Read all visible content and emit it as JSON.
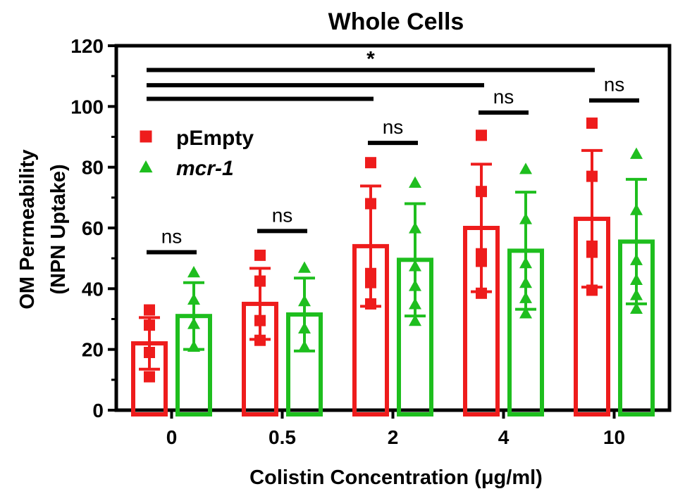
{
  "chart_data": {
    "type": "bar",
    "title": "Whole Cells",
    "xlabel": "Colistin Concentration (μg/ml)",
    "ylabel_line1": "OM Permeability",
    "ylabel_line2": "(NPN Uptake)",
    "categories": [
      "0",
      "0.5",
      "2",
      "4",
      "10"
    ],
    "ylim": [
      0,
      120
    ],
    "yticks": [
      0,
      20,
      40,
      60,
      80,
      100,
      120
    ],
    "grid": false,
    "legend_position": "upper-left",
    "series": [
      {
        "name": "pEmpty",
        "italic": false,
        "color": "#ee1c1c",
        "marker": "square",
        "means": [
          22,
          35,
          54,
          60,
          63
        ],
        "sd": [
          8.5,
          11.7,
          19.8,
          21,
          22.5
        ],
        "points": [
          [
            11,
            19,
            28,
            33
          ],
          [
            23,
            29.5,
            42.5,
            51
          ],
          [
            35,
            42,
            45,
            68,
            81.5
          ],
          [
            38.5,
            49,
            51.5,
            72,
            90.5
          ],
          [
            39.5,
            52,
            54,
            77,
            94.5
          ]
        ]
      },
      {
        "name": "mcr-1",
        "italic": true,
        "color": "#1ebe1e",
        "marker": "triangle",
        "means": [
          31,
          31.5,
          49.5,
          52.5,
          55.5
        ],
        "sd": [
          11,
          12,
          18.5,
          19.3,
          20.5
        ],
        "points": [
          [
            21,
            28.5,
            36.5,
            45.5
          ],
          [
            21,
            27,
            36,
            47
          ],
          [
            29.5,
            35,
            41,
            47.5,
            60,
            75
          ],
          [
            32,
            37,
            42,
            48.5,
            63,
            79.5
          ],
          [
            33.5,
            38,
            43,
            49.5,
            66,
            84.5
          ]
        ]
      }
    ],
    "annotations": [
      {
        "text": "ns",
        "category": 0,
        "y": 52
      },
      {
        "text": "ns",
        "category": 1,
        "y": 59
      },
      {
        "text": "ns",
        "category": 2,
        "y": 88
      },
      {
        "text": "ns",
        "category": 3,
        "y": 98
      },
      {
        "text": "ns",
        "category": 4,
        "y": 102
      }
    ],
    "comparison_lines": [
      {
        "from_category": 0,
        "to_category": 4,
        "y": 112
      },
      {
        "from_category": 0,
        "to_category": 3,
        "y": 107
      },
      {
        "from_category": 0,
        "to_category": 2,
        "y": 102.5
      }
    ],
    "significance_label": "*"
  }
}
